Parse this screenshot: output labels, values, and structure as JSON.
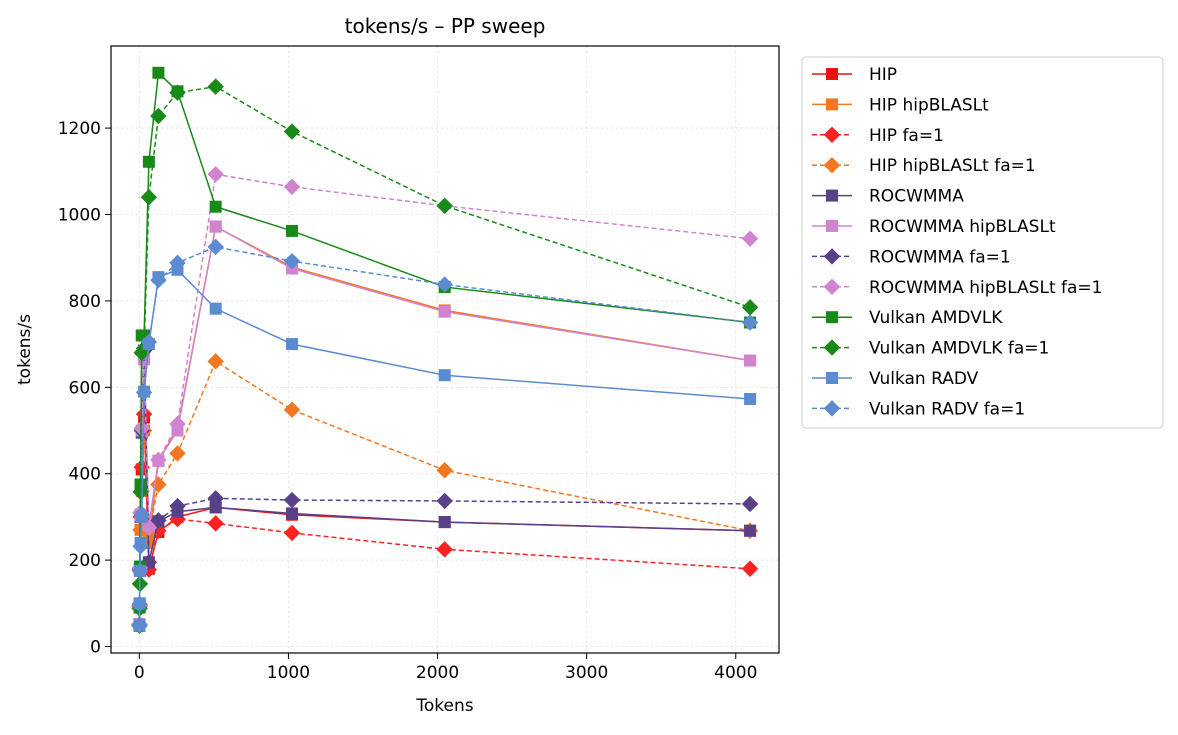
{
  "chart_data": {
    "type": "line",
    "title": "tokens/s – PP sweep",
    "xlabel": "Tokens",
    "ylabel": "tokens/s",
    "xlim": [
      -190,
      4290
    ],
    "ylim": [
      -15,
      1390
    ],
    "xticks": [
      0,
      1000,
      2000,
      3000,
      4000
    ],
    "yticks": [
      0,
      200,
      400,
      600,
      800,
      1000,
      1200
    ],
    "grid": true,
    "legend_position": "outside-right",
    "x": [
      1,
      2,
      4,
      8,
      16,
      32,
      64,
      128,
      256,
      512,
      1024,
      2048,
      4096
    ],
    "series": [
      {
        "name": "HIP",
        "color": "#ee1111",
        "dash": false,
        "marker": "square",
        "values": [
          50,
          95,
          180,
          300,
          410,
          530,
          180,
          265,
          300,
          322,
          305,
          288,
          268
        ]
      },
      {
        "name": "HIP hipBLASLt",
        "color": "#f37721",
        "dash": false,
        "marker": "square",
        "values": [
          50,
          95,
          175,
          270,
          360,
          500,
          240,
          430,
          505,
          972,
          878,
          778,
          662
        ]
      },
      {
        "name": "HIP fa=1",
        "color": "#ff2222",
        "dash": true,
        "marker": "diamond",
        "values": [
          50,
          93,
          178,
          300,
          415,
          538,
          178,
          268,
          295,
          285,
          263,
          225,
          180
        ]
      },
      {
        "name": "HIP hipBLASLt fa=1",
        "color": "#f37721",
        "dash": true,
        "marker": "diamond",
        "values": [
          50,
          95,
          175,
          270,
          360,
          500,
          260,
          375,
          447,
          660,
          548,
          408,
          268
        ]
      },
      {
        "name": "ROCWMMA",
        "color": "#59418a",
        "dash": false,
        "marker": "square",
        "values": [
          50,
          98,
          178,
          305,
          495,
          685,
          195,
          290,
          312,
          322,
          308,
          288,
          268
        ]
      },
      {
        "name": "ROCWMMA hipBLASLt",
        "color": "#d084cf",
        "dash": false,
        "marker": "square",
        "values": [
          52,
          98,
          178,
          305,
          500,
          665,
          280,
          430,
          500,
          972,
          875,
          775,
          662
        ]
      },
      {
        "name": "ROCWMMA fa=1",
        "color": "#59418a",
        "dash": true,
        "marker": "diamond",
        "values": [
          50,
          98,
          180,
          310,
          500,
          685,
          195,
          292,
          325,
          343,
          339,
          337,
          330
        ]
      },
      {
        "name": "ROCWMMA hipBLASLt fa=1",
        "color": "#d084cf",
        "dash": true,
        "marker": "diamond",
        "values": [
          52,
          98,
          182,
          310,
          505,
          690,
          275,
          432,
          515,
          1093,
          1064,
          1020,
          944
        ]
      },
      {
        "name": "Vulkan AMDVLK",
        "color": "#178a17",
        "dash": false,
        "marker": "square",
        "values": [
          48,
          90,
          185,
          375,
          720,
          720,
          1122,
          1328,
          1285,
          1018,
          962,
          832,
          750
        ]
      },
      {
        "name": "Vulkan AMDVLK fa=1",
        "color": "#178a17",
        "dash": true,
        "marker": "diamond",
        "values": [
          48,
          88,
          145,
          358,
          680,
          690,
          1040,
          1228,
          1282,
          1296,
          1192,
          1020,
          785
        ]
      },
      {
        "name": "Vulkan RADV",
        "color": "#5b8bd0",
        "dash": false,
        "marker": "square",
        "values": [
          50,
          100,
          175,
          240,
          300,
          590,
          700,
          855,
          872,
          782,
          700,
          628,
          573
        ]
      },
      {
        "name": "Vulkan RADV fa=1",
        "color": "#5b8bd0",
        "dash": true,
        "marker": "diamond",
        "values": [
          50,
          98,
          175,
          232,
          305,
          588,
          705,
          848,
          888,
          925,
          892,
          838,
          750
        ]
      }
    ]
  }
}
